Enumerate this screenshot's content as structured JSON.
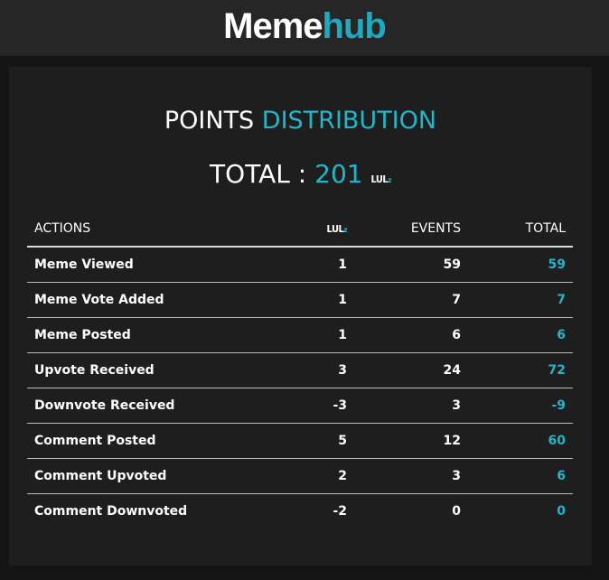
{
  "header": {
    "logo_part1": "Meme",
    "logo_part2": "hub"
  },
  "title": {
    "part1": "POINTS",
    "part2": "DISTRIBUTION"
  },
  "total": {
    "label": "TOTAL :",
    "value": "201",
    "unit": "LUL",
    "unit_suffix": "z"
  },
  "table": {
    "headers": {
      "actions": "ACTIONS",
      "lul": "LUL",
      "lul_suffix": "z",
      "events": "EVENTS",
      "total": "TOTAL"
    },
    "rows": [
      {
        "action": "Meme Viewed",
        "lul": "1",
        "events": "59",
        "total": "59"
      },
      {
        "action": "Meme Vote Added",
        "lul": "1",
        "events": "7",
        "total": "7"
      },
      {
        "action": "Meme Posted",
        "lul": "1",
        "events": "6",
        "total": "6"
      },
      {
        "action": "Upvote Received",
        "lul": "3",
        "events": "24",
        "total": "72"
      },
      {
        "action": "Downvote Received",
        "lul": "-3",
        "events": "3",
        "total": "-9"
      },
      {
        "action": "Comment Posted",
        "lul": "5",
        "events": "12",
        "total": "60"
      },
      {
        "action": "Comment Upvoted",
        "lul": "2",
        "events": "3",
        "total": "6"
      },
      {
        "action": "Comment Downvoted",
        "lul": "-2",
        "events": "0",
        "total": "0"
      }
    ]
  },
  "colors": {
    "accent": "#23b5c9",
    "background": "#141414",
    "panel": "#1e1e1e"
  }
}
